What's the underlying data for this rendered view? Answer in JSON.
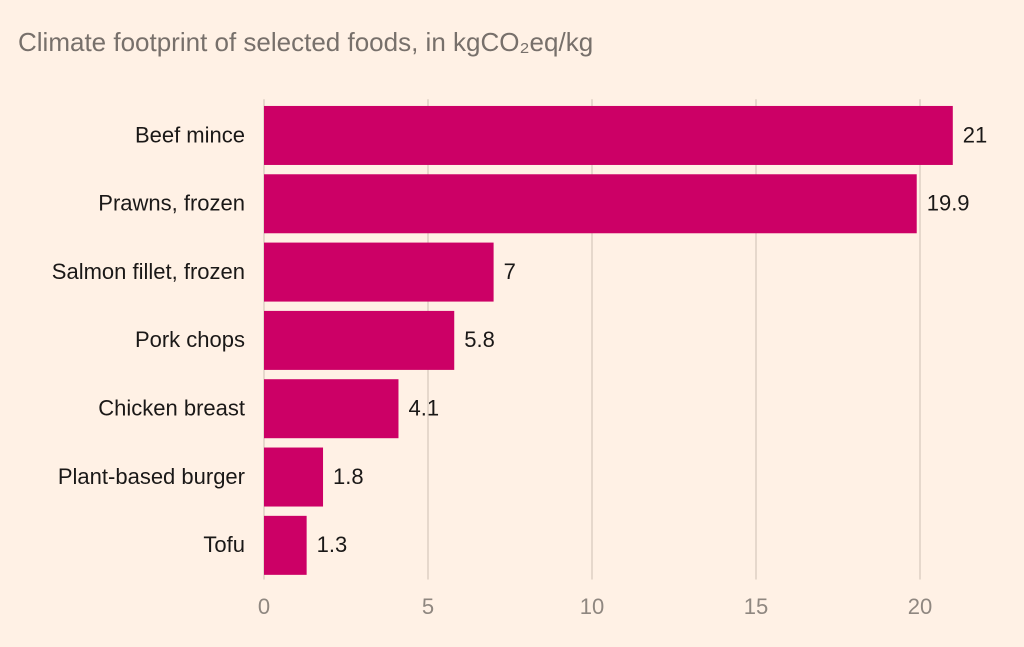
{
  "chart_data": {
    "type": "bar",
    "orientation": "horizontal",
    "title": "Climate footprint of selected foods, in kgCO₂eq/kg",
    "categories": [
      "Beef mince",
      "Prawns, frozen",
      "Salmon fillet, frozen",
      "Pork chops",
      "Chicken breast",
      "Plant-based burger",
      "Tofu"
    ],
    "values": [
      21,
      19.9,
      7,
      5.8,
      4.1,
      1.8,
      1.3
    ],
    "color": "#cc0066",
    "xlim": [
      0,
      21
    ],
    "xticks": [
      0,
      5,
      10,
      15,
      20
    ],
    "grid": true
  }
}
